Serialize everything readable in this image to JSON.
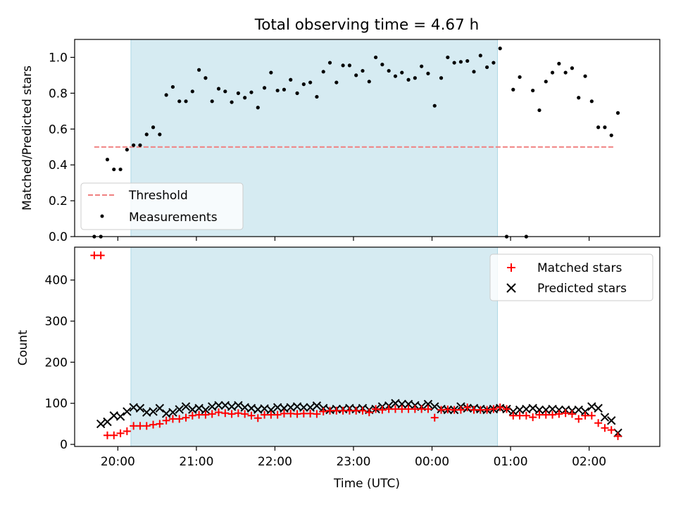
{
  "chart_data": [
    {
      "type": "scatter",
      "title": "Total observing time = 4.67 h",
      "xlabel": "",
      "ylabel": "Matched/Predicted stars",
      "x_unit": "time of day (UTC), hours",
      "xlim": [
        "19:27",
        "02:54"
      ],
      "ylim": [
        0,
        1.1
      ],
      "yticks": [
        0,
        0.2,
        0.4,
        0.6,
        0.8,
        1.0
      ],
      "ytick_labels": [
        "0.0",
        "0.2",
        "0.4",
        "0.6",
        "0.8",
        "1.0"
      ],
      "grid": false,
      "legend_position": "lower-left",
      "shaded_interval": [
        "20:10",
        "00:50"
      ],
      "series": [
        {
          "name": "Threshold",
          "style": "dashed line",
          "color": "#f08080",
          "x": [
            "19:42",
            "02:20"
          ],
          "y": [
            0.5,
            0.5
          ]
        },
        {
          "name": "Measurements",
          "style": "points",
          "color": "#000000",
          "x": [
            "19:42",
            "19:47",
            "19:52",
            "19:57",
            "20:02",
            "20:07",
            "20:12",
            "20:17",
            "20:22",
            "20:27",
            "20:32",
            "20:37",
            "20:42",
            "20:47",
            "20:52",
            "20:57",
            "21:02",
            "21:07",
            "21:12",
            "21:17",
            "21:22",
            "21:27",
            "21:32",
            "21:37",
            "21:42",
            "21:47",
            "21:52",
            "21:57",
            "22:02",
            "22:07",
            "22:12",
            "22:17",
            "22:22",
            "22:27",
            "22:32",
            "22:37",
            "22:42",
            "22:47",
            "22:52",
            "22:57",
            "23:02",
            "23:07",
            "23:12",
            "23:17",
            "23:22",
            "23:27",
            "23:32",
            "23:37",
            "23:42",
            "23:47",
            "23:52",
            "23:57",
            "00:02",
            "00:07",
            "00:12",
            "00:17",
            "00:22",
            "00:27",
            "00:32",
            "00:37",
            "00:42",
            "00:47",
            "00:52",
            "00:57",
            "01:02",
            "01:07",
            "01:12",
            "01:17",
            "01:22",
            "01:27",
            "01:32",
            "01:37",
            "01:42",
            "01:47",
            "01:52",
            "01:57",
            "02:02",
            "02:07",
            "02:12",
            "02:17",
            "02:22"
          ],
          "y": [
            0.0,
            0.0,
            0.43,
            0.375,
            0.375,
            0.485,
            0.51,
            0.51,
            0.57,
            0.61,
            0.57,
            0.79,
            0.835,
            0.755,
            0.755,
            0.81,
            0.93,
            0.885,
            0.755,
            0.825,
            0.81,
            0.75,
            0.8,
            0.775,
            0.805,
            0.72,
            0.83,
            0.915,
            0.815,
            0.82,
            0.875,
            0.8,
            0.85,
            0.86,
            0.78,
            0.92,
            0.97,
            0.86,
            0.955,
            0.955,
            0.9,
            0.925,
            0.865,
            1.0,
            0.96,
            0.925,
            0.895,
            0.915,
            0.875,
            0.885,
            0.95,
            0.91,
            0.73,
            0.885,
            1.0,
            0.97,
            0.975,
            0.98,
            0.92,
            1.01,
            0.945,
            0.97,
            1.05,
            0.0,
            0.82,
            0.89,
            0.0,
            0.815,
            0.705,
            0.865,
            0.915,
            0.965,
            0.915,
            0.94,
            0.775,
            0.895,
            0.755,
            0.61,
            0.61,
            0.565,
            0.69
          ]
        }
      ]
    },
    {
      "type": "scatter",
      "title": "",
      "xlabel": "Time (UTC)",
      "ylabel": "Count",
      "x_unit": "time of day (UTC), hours",
      "xlim": [
        "19:27",
        "02:54"
      ],
      "ylim": [
        -5,
        480
      ],
      "yticks": [
        0,
        100,
        200,
        300,
        400
      ],
      "ytick_labels": [
        "0",
        "100",
        "200",
        "300",
        "400"
      ],
      "xticks": [
        "20:00",
        "21:00",
        "22:00",
        "23:00",
        "00:00",
        "01:00",
        "02:00"
      ],
      "xtick_labels": [
        "20:00",
        "21:00",
        "22:00",
        "23:00",
        "00:00",
        "01:00",
        "02:00"
      ],
      "grid": false,
      "legend_position": "top-right",
      "shaded_interval": [
        "20:10",
        "00:50"
      ],
      "series": [
        {
          "name": "Matched stars",
          "marker": "+",
          "color": "#ff0000",
          "x": [
            "19:42",
            "19:47",
            "19:52",
            "19:57",
            "20:02",
            "20:07",
            "20:12",
            "20:17",
            "20:22",
            "20:27",
            "20:32",
            "20:37",
            "20:42",
            "20:47",
            "20:52",
            "20:57",
            "21:02",
            "21:07",
            "21:12",
            "21:17",
            "21:22",
            "21:27",
            "21:32",
            "21:37",
            "21:42",
            "21:47",
            "21:52",
            "21:57",
            "22:02",
            "22:07",
            "22:12",
            "22:17",
            "22:22",
            "22:27",
            "22:32",
            "22:37",
            "22:42",
            "22:47",
            "22:52",
            "22:57",
            "23:02",
            "23:07",
            "23:12",
            "23:17",
            "23:22",
            "23:27",
            "23:32",
            "23:37",
            "23:42",
            "23:47",
            "23:52",
            "23:57",
            "00:02",
            "00:07",
            "00:12",
            "00:17",
            "00:22",
            "00:27",
            "00:32",
            "00:37",
            "00:42",
            "00:47",
            "00:52",
            "00:57",
            "01:02",
            "01:07",
            "01:12",
            "01:17",
            "01:22",
            "01:27",
            "01:32",
            "01:37",
            "01:42",
            "01:47",
            "01:52",
            "01:57",
            "02:02",
            "02:07",
            "02:12",
            "02:17",
            "02:22"
          ],
          "y": [
            460,
            460,
            22,
            22,
            27,
            32,
            45,
            45,
            45,
            48,
            50,
            58,
            62,
            62,
            65,
            70,
            72,
            72,
            74,
            78,
            76,
            74,
            76,
            74,
            70,
            64,
            72,
            72,
            72,
            75,
            75,
            74,
            75,
            75,
            74,
            80,
            82,
            82,
            82,
            82,
            82,
            82,
            78,
            86,
            84,
            86,
            86,
            86,
            86,
            86,
            86,
            86,
            65,
            84,
            85,
            84,
            84,
            90,
            84,
            84,
            84,
            86,
            90,
            86,
            70,
            70,
            70,
            66,
            72,
            72,
            72,
            74,
            76,
            74,
            62,
            70,
            70,
            52,
            40,
            35,
            20
          ]
        },
        {
          "name": "Predicted stars",
          "marker": "x",
          "color": "#000000",
          "x": [
            "19:47",
            "19:52",
            "19:57",
            "20:02",
            "20:07",
            "20:12",
            "20:17",
            "20:22",
            "20:27",
            "20:32",
            "20:37",
            "20:42",
            "20:47",
            "20:52",
            "20:57",
            "21:02",
            "21:07",
            "21:12",
            "21:17",
            "21:22",
            "21:27",
            "21:32",
            "21:37",
            "21:42",
            "21:47",
            "21:52",
            "21:57",
            "22:02",
            "22:07",
            "22:12",
            "22:17",
            "22:22",
            "22:27",
            "22:32",
            "22:37",
            "22:42",
            "22:47",
            "22:52",
            "22:57",
            "23:02",
            "23:07",
            "23:12",
            "23:17",
            "23:22",
            "23:27",
            "23:32",
            "23:37",
            "23:42",
            "23:47",
            "23:52",
            "23:57",
            "00:02",
            "00:07",
            "00:12",
            "00:17",
            "00:22",
            "00:27",
            "00:32",
            "00:37",
            "00:42",
            "00:47",
            "00:52",
            "00:57",
            "01:02",
            "01:07",
            "01:12",
            "01:17",
            "01:22",
            "01:27",
            "01:32",
            "01:37",
            "01:42",
            "01:47",
            "01:52",
            "01:57",
            "02:02",
            "02:07",
            "02:12",
            "02:17",
            "02:22"
          ],
          "y": [
            50,
            55,
            70,
            68,
            80,
            90,
            88,
            78,
            80,
            88,
            75,
            78,
            85,
            92,
            85,
            88,
            84,
            92,
            95,
            95,
            92,
            95,
            90,
            88,
            85,
            87,
            84,
            90,
            88,
            90,
            92,
            90,
            90,
            94,
            88,
            84,
            86,
            86,
            88,
            86,
            88,
            84,
            86,
            92,
            94,
            100,
            98,
            98,
            95,
            92,
            98,
            92,
            86,
            84,
            84,
            92,
            88,
            88,
            86,
            84,
            86,
            88,
            86,
            80,
            84,
            86,
            88,
            84,
            84,
            86,
            84,
            84,
            82,
            84,
            80,
            92,
            88,
            66,
            58,
            28
          ]
        }
      ]
    }
  ]
}
